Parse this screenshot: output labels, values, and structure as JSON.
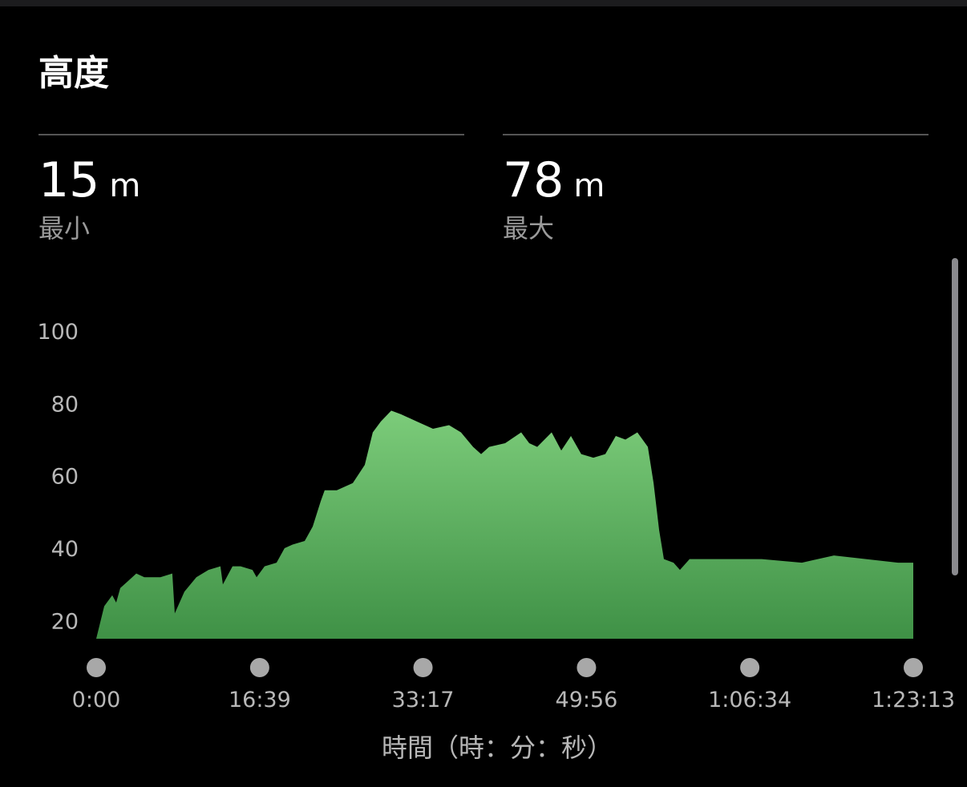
{
  "header": {
    "title": "高度"
  },
  "stats": [
    {
      "value": 15,
      "unit": "m",
      "label": "最小"
    },
    {
      "value": 78,
      "unit": "m",
      "label": "最大"
    }
  ],
  "chart_data": {
    "type": "area",
    "x_label": "時間（時：分：秒）",
    "color": "#7ccc7a",
    "color_bottom": "#3f9146",
    "x": [
      0,
      49,
      98,
      122,
      147,
      196,
      245,
      294,
      343,
      392,
      465,
      480,
      539,
      612,
      686,
      759,
      774,
      833,
      882,
      955,
      980,
      1029,
      1102,
      1151,
      1200,
      1274,
      1323,
      1372,
      1396,
      1470,
      1568,
      1641,
      1690,
      1739,
      1803,
      1862,
      1960,
      2058,
      2156,
      2229,
      2303,
      2352,
      2401,
      2499,
      2597,
      2646,
      2695,
      2783,
      2842,
      2901,
      2964,
      3038,
      3111,
      3175,
      3234,
      3307,
      3371,
      3406,
      3440,
      3469,
      3528,
      3567,
      3626,
      3822,
      4067,
      4312,
      4508,
      4704,
      4900,
      4993
    ],
    "values": [
      15,
      24,
      27,
      25,
      29,
      31,
      33,
      32,
      32,
      32,
      33,
      22,
      28,
      32,
      34,
      35,
      30,
      35,
      35,
      34,
      32,
      35,
      36,
      40,
      41,
      42,
      46,
      53,
      56,
      56,
      58,
      63,
      72,
      75,
      78,
      77,
      75,
      73,
      74,
      72,
      68,
      66,
      68,
      69,
      72,
      69,
      68,
      72,
      67,
      71,
      66,
      65,
      66,
      71,
      70,
      72,
      68,
      58,
      45,
      37,
      36,
      34,
      37,
      37,
      37,
      36,
      38,
      37,
      36,
      36
    ],
    "xlim": [
      0,
      4993
    ],
    "ylim": [
      15,
      100
    ],
    "xticks": [
      {
        "value": 0,
        "label": "0:00"
      },
      {
        "value": 999,
        "label": "16:39"
      },
      {
        "value": 1997,
        "label": "33:17"
      },
      {
        "value": 2996,
        "label": "49:56"
      },
      {
        "value": 3994,
        "label": "1:06:34"
      },
      {
        "value": 4993,
        "label": "1:23:13"
      }
    ],
    "yticks": [
      20,
      40,
      60,
      80,
      100
    ]
  }
}
